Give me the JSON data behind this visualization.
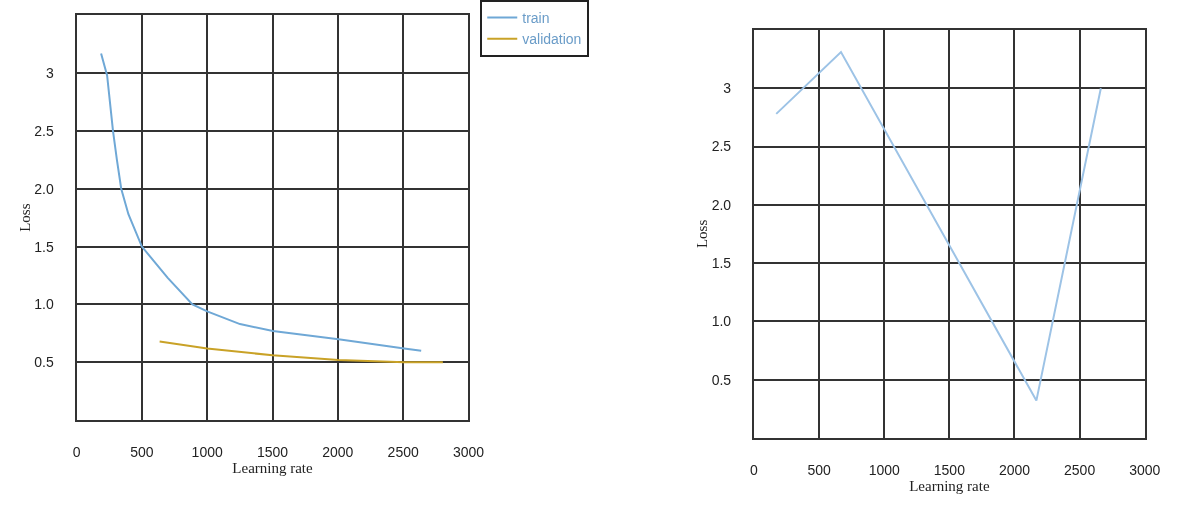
{
  "chart_data": [
    {
      "type": "line",
      "xlabel": "Learning rate",
      "ylabel": "Loss",
      "xlim": [
        0,
        3000
      ],
      "ylim": [
        0,
        3.5
      ],
      "xticks": [
        0,
        500,
        1000,
        1500,
        2000,
        2500,
        3000
      ],
      "yticks": [
        {
          "value": 0.5,
          "label": "0.5"
        },
        {
          "value": 1,
          "label": "1.0"
        },
        {
          "value": 1.5,
          "label": "1.5"
        },
        {
          "value": 2,
          "label": "2.0"
        },
        {
          "value": 2.5,
          "label": "2.5"
        },
        3
      ],
      "grid": true,
      "legend": "top right",
      "series": [
        {
          "name": "train",
          "color": "#6fa8d6",
          "x": [
            188,
            234,
            279,
            309,
            342,
            397,
            500,
            698,
            887,
            1000,
            1251,
            1503,
            2005,
            2508,
            2638
          ],
          "values": [
            3.17,
            2.98,
            2.5,
            2.25,
            2.0,
            1.78,
            1.5,
            1.23,
            1.0,
            0.94,
            0.83,
            0.77,
            0.7,
            0.62,
            0.6
          ]
        },
        {
          "name": "validation",
          "color": "#c9a227",
          "x": [
            636,
            1000,
            1500,
            2005,
            2508,
            2804
          ],
          "values": [
            0.68,
            0.62,
            0.56,
            0.52,
            0.5,
            0.5
          ]
        }
      ]
    },
    {
      "type": "line",
      "xlabel": "Learning rate",
      "ylabel": "Loss",
      "xlim": [
        0,
        3000
      ],
      "ylim": [
        0,
        3.5
      ],
      "xticks": [
        0,
        500,
        1000,
        1500,
        2000,
        2500,
        3000
      ],
      "yticks": [
        {
          "value": 0.5,
          "label": "0.5"
        },
        {
          "value": 1,
          "label": "1.0"
        },
        {
          "value": 1.5,
          "label": "1.5"
        },
        {
          "value": 2,
          "label": "2.0"
        },
        {
          "value": 2.5,
          "label": "2.5"
        },
        3
      ],
      "grid": true,
      "series": [
        {
          "color": "#9dc3e6",
          "x": [
            171,
            668,
            2168,
            2663
          ],
          "values": [
            2.78,
            3.31,
            0.32,
            3.0
          ]
        }
      ]
    }
  ]
}
